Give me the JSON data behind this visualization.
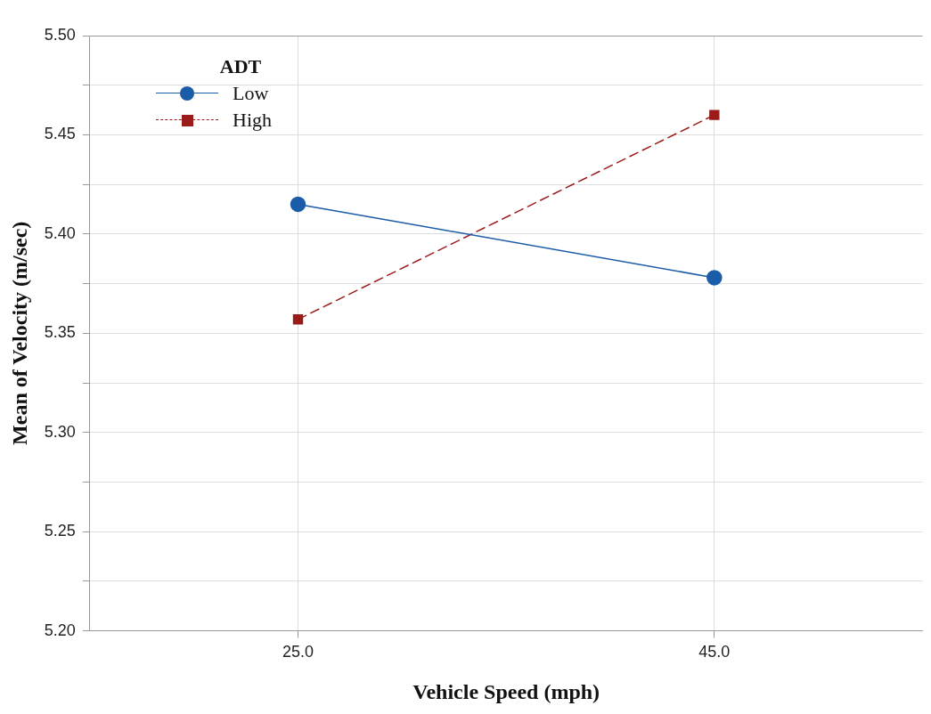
{
  "chart_data": {
    "type": "line",
    "xlabel": "Vehicle Speed (mph)",
    "ylabel": "Mean of Velocity (m/sec)",
    "legend_title": "ADT",
    "legend": "top left",
    "grid": true,
    "x": [
      25,
      45
    ],
    "xlim": [
      15,
      55
    ],
    "xticks": [
      {
        "value": 25,
        "label": "25.0"
      },
      {
        "value": 45,
        "label": "45.0"
      }
    ],
    "ylim": [
      5.2,
      5.5
    ],
    "yticks": [
      {
        "value": 5.2,
        "label": "5.20"
      },
      {
        "value": 5.225,
        "label": null
      },
      {
        "value": 5.25,
        "label": "5.25"
      },
      {
        "value": 5.275,
        "label": null
      },
      {
        "value": 5.3,
        "label": "5.30"
      },
      {
        "value": 5.325,
        "label": null
      },
      {
        "value": 5.35,
        "label": "5.35"
      },
      {
        "value": 5.375,
        "label": null
      },
      {
        "value": 5.4,
        "label": "5.40"
      },
      {
        "value": 5.425,
        "label": null
      },
      {
        "value": 5.45,
        "label": "5.45"
      },
      {
        "value": 5.475,
        "label": null
      },
      {
        "value": 5.5,
        "label": "5.50"
      }
    ],
    "series": [
      {
        "name": "Low",
        "color": "#1a5ca8",
        "values": [
          5.415,
          5.378
        ],
        "marker": "circle",
        "line_style": "solid"
      },
      {
        "name": "High",
        "color": "#9b1a1a",
        "values": [
          5.357,
          5.46
        ],
        "marker": "square",
        "line_style": "dashed"
      }
    ]
  }
}
